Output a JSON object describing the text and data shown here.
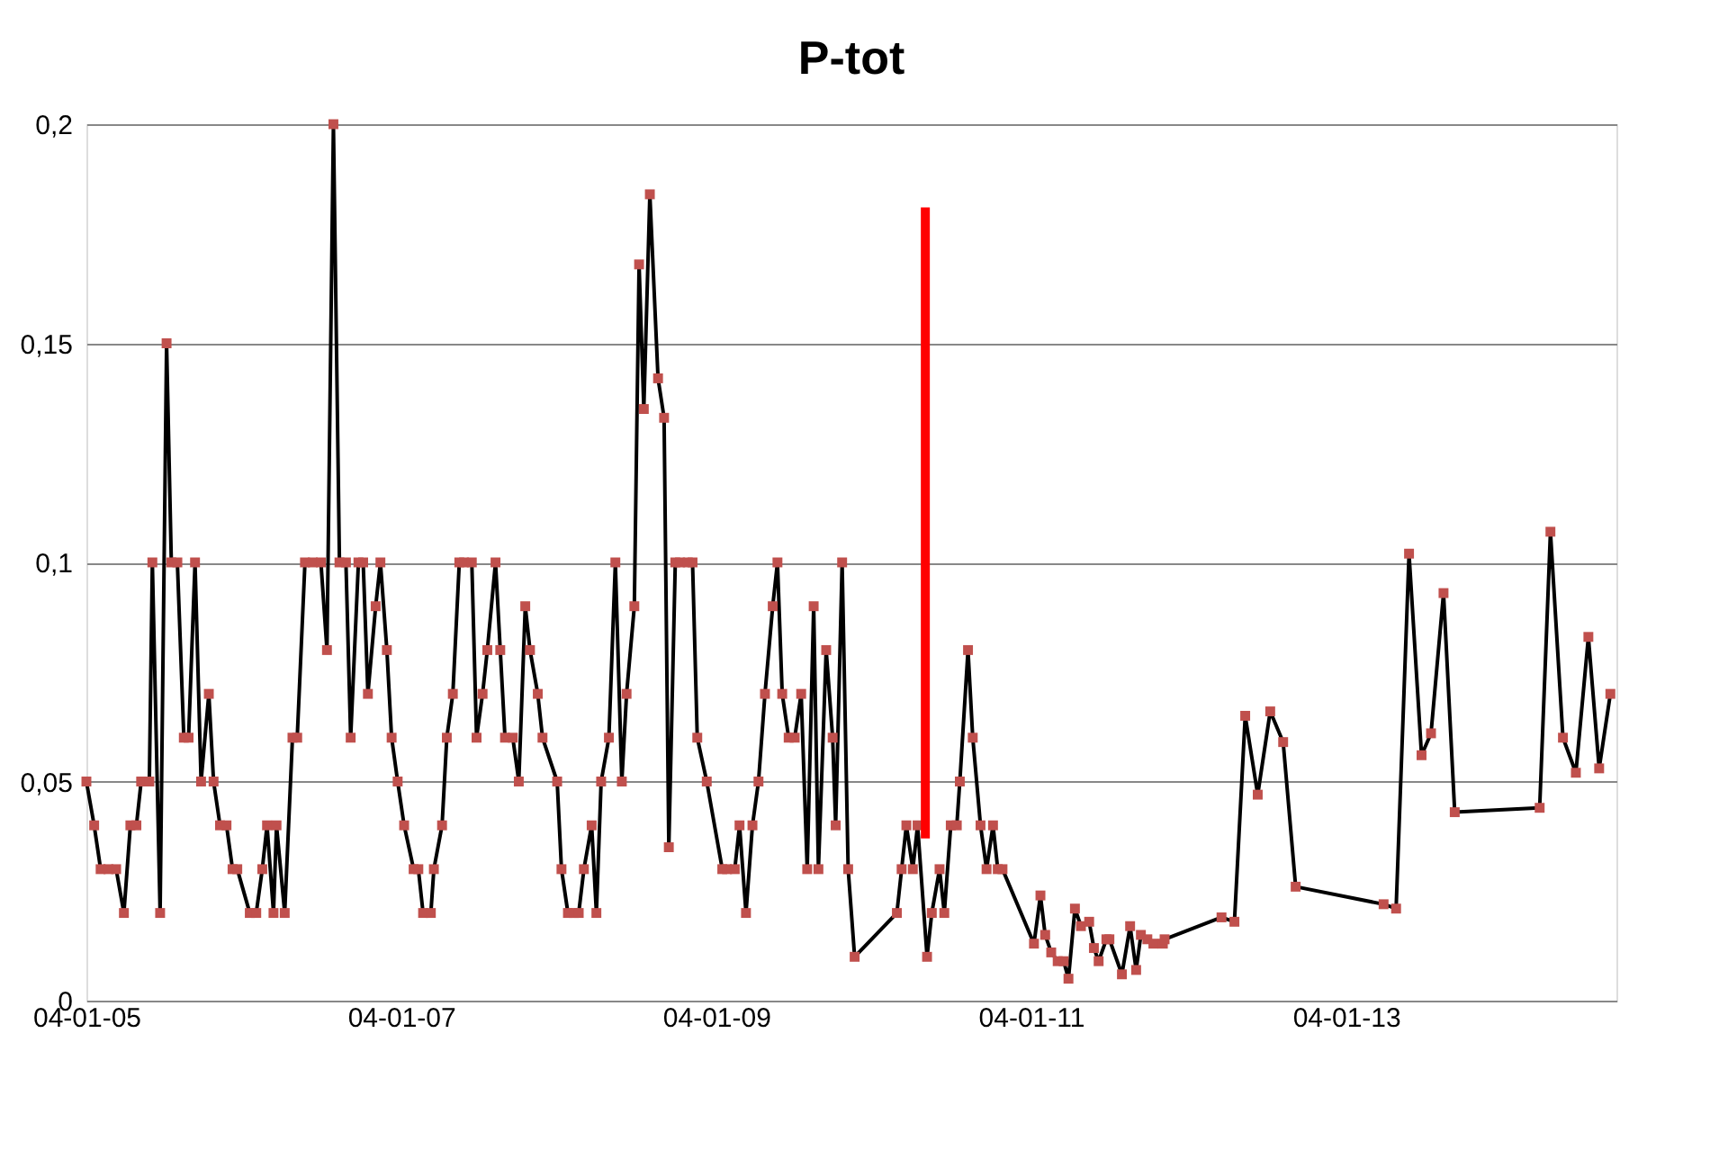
{
  "chart_data": {
    "type": "line",
    "title": "P-tot",
    "xlim": [
      "2005-01-04",
      "2014-09-23"
    ],
    "xticks": [
      {
        "value": "2005-01-04",
        "label": "04-01-05"
      },
      {
        "value": "2007-01-04",
        "label": "04-01-07"
      },
      {
        "value": "2009-01-04",
        "label": "04-01-09"
      },
      {
        "value": "2011-01-04",
        "label": "04-01-11"
      },
      {
        "value": "2013-01-04",
        "label": "04-01-13"
      }
    ],
    "ylim": [
      0,
      0.2
    ],
    "yticks": [
      {
        "value": 0,
        "label": "0"
      },
      {
        "value": 0.05,
        "label": "0,05"
      },
      {
        "value": 0.1,
        "label": "0,1"
      },
      {
        "value": 0.15,
        "label": "0,15"
      },
      {
        "value": 0.2,
        "label": "0,2"
      }
    ],
    "grid": "y",
    "series": [
      {
        "color": "#c0504d",
        "marker": "square",
        "line_style": "solid",
        "x": [
          "2005-01-04",
          "2005-01-22",
          "2005-02-06",
          "2005-02-24",
          "2005-03-14",
          "2005-04-01",
          "2005-04-16",
          "2005-04-30",
          "2005-05-11",
          "2005-05-30",
          "2005-06-06",
          "2005-06-24",
          "2005-07-09",
          "2005-07-20",
          "2005-08-03",
          "2005-08-18",
          "2005-08-29",
          "2005-09-13",
          "2005-09-27",
          "2005-10-15",
          "2005-10-26",
          "2005-11-10",
          "2005-11-25",
          "2005-12-09",
          "2005-12-20",
          "2006-01-18",
          "2006-02-02",
          "2006-02-16",
          "2006-02-27",
          "2006-03-14",
          "2006-03-21",
          "2006-04-09",
          "2006-04-27",
          "2006-05-08",
          "2006-05-26",
          "2006-06-13",
          "2006-07-02",
          "2006-07-16",
          "2006-07-31",
          "2006-08-14",
          "2006-08-29",
          "2006-09-09",
          "2006-09-27",
          "2006-10-08",
          "2006-10-19",
          "2006-11-06",
          "2006-11-17",
          "2006-12-02",
          "2006-12-13",
          "2006-12-27",
          "2007-01-11",
          "2007-02-02",
          "2007-02-13",
          "2007-02-24",
          "2007-03-14",
          "2007-03-21",
          "2007-04-09",
          "2007-04-20",
          "2007-05-04",
          "2007-05-19",
          "2007-05-30",
          "2007-06-17",
          "2007-06-28",
          "2007-07-12",
          "2007-07-23",
          "2007-08-11",
          "2007-08-22",
          "2007-09-02",
          "2007-09-20",
          "2007-10-04",
          "2007-10-19",
          "2007-10-30",
          "2007-11-17",
          "2007-11-28",
          "2008-01-01",
          "2008-01-11",
          "2008-01-26",
          "2008-02-09",
          "2008-02-20",
          "2008-03-03",
          "2008-03-21",
          "2008-04-01",
          "2008-04-12",
          "2008-04-30",
          "2008-05-15",
          "2008-05-30",
          "2008-06-10",
          "2008-06-28",
          "2008-07-09",
          "2008-07-20",
          "2008-08-03",
          "2008-08-22",
          "2008-09-05",
          "2008-09-16",
          "2008-10-01",
          "2008-10-12",
          "2008-10-30",
          "2008-11-10",
          "2008-11-21",
          "2008-12-13",
          "2009-01-18",
          "2009-01-29",
          "2009-02-16",
          "2009-02-27",
          "2009-03-14",
          "2009-03-29",
          "2009-04-12",
          "2009-04-27",
          "2009-05-15",
          "2009-05-26",
          "2009-06-06",
          "2009-06-21",
          "2009-07-05",
          "2009-07-20",
          "2009-08-03",
          "2009-08-18",
          "2009-08-29",
          "2009-09-16",
          "2009-10-01",
          "2009-10-08",
          "2009-10-23",
          "2009-11-06",
          "2009-11-21",
          "2010-02-27",
          "2010-03-10",
          "2010-03-21",
          "2010-04-05",
          "2010-04-16",
          "2010-05-08",
          "2010-05-19",
          "2010-06-06",
          "2010-06-17",
          "2010-07-02",
          "2010-07-16",
          "2010-07-23",
          "2010-08-11",
          "2010-08-22",
          "2010-09-09",
          "2010-09-23",
          "2010-10-08",
          "2010-10-19",
          "2010-10-30",
          "2011-01-11",
          "2011-01-26",
          "2011-02-06",
          "2011-02-20",
          "2011-03-07",
          "2011-03-21",
          "2011-04-01",
          "2011-04-16",
          "2011-04-30",
          "2011-05-19",
          "2011-05-30",
          "2011-06-10",
          "2011-06-28",
          "2011-07-05",
          "2011-08-03",
          "2011-08-22",
          "2011-09-05",
          "2011-09-16",
          "2011-10-01",
          "2011-10-15",
          "2011-11-06",
          "2011-11-10",
          "2012-03-21",
          "2012-04-20",
          "2012-05-15",
          "2012-06-13",
          "2012-07-12",
          "2012-08-11",
          "2012-09-09",
          "2013-04-01",
          "2013-04-30",
          "2013-05-30",
          "2013-06-28",
          "2013-07-20",
          "2013-08-18",
          "2013-09-13",
          "2014-03-29",
          "2014-04-23",
          "2014-05-22",
          "2014-06-21",
          "2014-07-20",
          "2014-08-14",
          "2014-09-09"
        ],
        "values": [
          0.05,
          0.04,
          0.03,
          0.03,
          0.03,
          0.02,
          0.04,
          0.04,
          0.05,
          0.05,
          0.1,
          0.02,
          0.15,
          0.1,
          0.1,
          0.06,
          0.06,
          0.1,
          0.05,
          0.07,
          0.05,
          0.04,
          0.04,
          0.03,
          0.03,
          0.02,
          0.02,
          0.03,
          0.04,
          0.02,
          0.04,
          0.02,
          0.06,
          0.06,
          0.1,
          0.1,
          0.1,
          0.08,
          0.2,
          0.1,
          0.1,
          0.06,
          0.1,
          0.1,
          0.07,
          0.09,
          0.1,
          0.08,
          0.06,
          0.05,
          0.04,
          0.03,
          0.03,
          0.02,
          0.02,
          0.03,
          0.04,
          0.06,
          0.07,
          0.1,
          0.1,
          0.1,
          0.06,
          0.07,
          0.08,
          0.1,
          0.08,
          0.06,
          0.06,
          0.05,
          0.09,
          0.08,
          0.07,
          0.06,
          0.05,
          0.03,
          0.02,
          0.02,
          0.02,
          0.03,
          0.04,
          0.02,
          0.05,
          0.06,
          0.1,
          0.05,
          0.07,
          0.09,
          0.168,
          0.135,
          0.184,
          0.142,
          0.133,
          0.035,
          0.1,
          0.1,
          0.1,
          0.1,
          0.06,
          0.05,
          0.03,
          0.03,
          0.03,
          0.04,
          0.02,
          0.04,
          0.05,
          0.07,
          0.09,
          0.1,
          0.07,
          0.06,
          0.06,
          0.07,
          0.03,
          0.09,
          0.03,
          0.08,
          0.06,
          0.04,
          0.1,
          0.03,
          0.01,
          0.02,
          0.03,
          0.04,
          0.03,
          0.04,
          0.01,
          0.02,
          0.03,
          0.02,
          0.04,
          0.04,
          0.05,
          0.08,
          0.06,
          0.04,
          0.03,
          0.04,
          0.03,
          0.03,
          0.013,
          0.024,
          0.015,
          0.011,
          0.009,
          0.009,
          0.005,
          0.021,
          0.017,
          0.018,
          0.012,
          0.009,
          0.014,
          0.014,
          0.006,
          0.017,
          0.007,
          0.015,
          0.014,
          0.013,
          0.013,
          0.014,
          0.019,
          0.018,
          0.065,
          0.047,
          0.066,
          0.059,
          0.026,
          0.022,
          0.021,
          0.102,
          0.056,
          0.061,
          0.093,
          0.043,
          0.044,
          0.107,
          0.06,
          0.052,
          0.083,
          0.053,
          0.07
        ]
      },
      {
        "color": "#ff0000",
        "marker": "none",
        "line_style": "solid",
        "x": [
          "2010-05-04",
          "2010-05-04"
        ],
        "values": [
          0.037,
          0.181
        ]
      }
    ]
  }
}
